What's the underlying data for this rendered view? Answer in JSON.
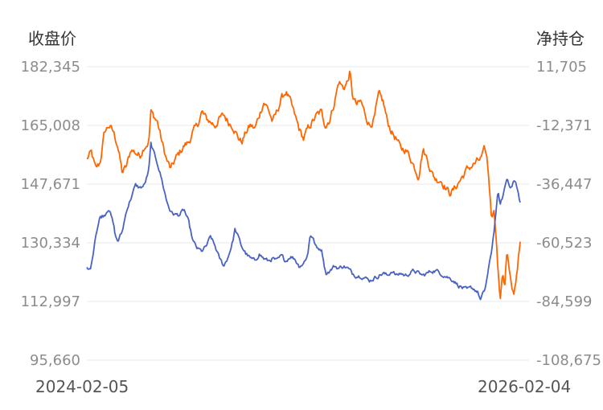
{
  "chart_data": {
    "type": "line",
    "left_axis_title": "收盘价",
    "right_axis_title": "净持仓",
    "left_ticks": [
      "182,345",
      "165,008",
      "147,671",
      "130,334",
      "112,997",
      "95,660"
    ],
    "right_ticks": [
      "11,705",
      "-12,371",
      "-36,447",
      "-60,523",
      "-84,599",
      "-108,675"
    ],
    "ylim_left": [
      95660,
      182345
    ],
    "ylim_right": [
      -108675,
      11705
    ],
    "x_start": "2024-02-05",
    "x_end": "2026-02-04",
    "grid": true,
    "series": [
      {
        "axis": "left",
        "color": "#ff6600",
        "anchors": [
          [
            0,
            155000
          ],
          [
            0.01,
            157000
          ],
          [
            0.02,
            152000
          ],
          [
            0.03,
            154000
          ],
          [
            0.04,
            163000
          ],
          [
            0.05,
            165000
          ],
          [
            0.06,
            163000
          ],
          [
            0.07,
            159000
          ],
          [
            0.08,
            151000
          ],
          [
            0.09,
            153000
          ],
          [
            0.1,
            158000
          ],
          [
            0.11,
            157000
          ],
          [
            0.12,
            156000
          ],
          [
            0.13,
            159000
          ],
          [
            0.14,
            160000
          ],
          [
            0.145,
            169000
          ],
          [
            0.15,
            168000
          ],
          [
            0.16,
            166000
          ],
          [
            0.17,
            160000
          ],
          [
            0.18,
            155000
          ],
          [
            0.19,
            152000
          ],
          [
            0.2,
            155000
          ],
          [
            0.21,
            157000
          ],
          [
            0.22,
            159000
          ],
          [
            0.23,
            160000
          ],
          [
            0.24,
            163000
          ],
          [
            0.25,
            165000
          ],
          [
            0.26,
            169000
          ],
          [
            0.27,
            167000
          ],
          [
            0.28,
            166000
          ],
          [
            0.29,
            165000
          ],
          [
            0.3,
            167000
          ],
          [
            0.31,
            168000
          ],
          [
            0.32,
            166000
          ],
          [
            0.33,
            165000
          ],
          [
            0.34,
            162000
          ],
          [
            0.35,
            160000
          ],
          [
            0.36,
            163000
          ],
          [
            0.37,
            165000
          ],
          [
            0.38,
            164000
          ],
          [
            0.39,
            168000
          ],
          [
            0.4,
            172000
          ],
          [
            0.41,
            170000
          ],
          [
            0.42,
            166000
          ],
          [
            0.43,
            169000
          ],
          [
            0.44,
            173000
          ],
          [
            0.45,
            175000
          ],
          [
            0.46,
            172000
          ],
          [
            0.47,
            168000
          ],
          [
            0.48,
            164000
          ],
          [
            0.49,
            161000
          ],
          [
            0.5,
            164000
          ],
          [
            0.51,
            166000
          ],
          [
            0.52,
            168000
          ],
          [
            0.53,
            169000
          ],
          [
            0.54,
            165000
          ],
          [
            0.55,
            167000
          ],
          [
            0.56,
            172000
          ],
          [
            0.57,
            178000
          ],
          [
            0.58,
            176000
          ],
          [
            0.59,
            178000
          ],
          [
            0.595,
            181000
          ],
          [
            0.6,
            174000
          ],
          [
            0.61,
            171000
          ],
          [
            0.62,
            172000
          ],
          [
            0.63,
            168000
          ],
          [
            0.64,
            165000
          ],
          [
            0.65,
            167000
          ],
          [
            0.66,
            174000
          ],
          [
            0.67,
            172000
          ],
          [
            0.68,
            166000
          ],
          [
            0.69,
            163000
          ],
          [
            0.7,
            161000
          ],
          [
            0.71,
            158000
          ],
          [
            0.72,
            158000
          ],
          [
            0.73,
            156000
          ],
          [
            0.74,
            153000
          ],
          [
            0.75,
            150000
          ],
          [
            0.76,
            158000
          ],
          [
            0.77,
            155000
          ],
          [
            0.78,
            151000
          ],
          [
            0.79,
            149000
          ],
          [
            0.8,
            149000
          ],
          [
            0.81,
            147000
          ],
          [
            0.82,
            145000
          ],
          [
            0.83,
            146000
          ],
          [
            0.84,
            148000
          ],
          [
            0.85,
            150000
          ],
          [
            0.86,
            152000
          ],
          [
            0.87,
            153000
          ],
          [
            0.88,
            154000
          ],
          [
            0.89,
            155000
          ],
          [
            0.895,
            156000
          ],
          [
            0.9,
            158000
          ],
          [
            0.905,
            155000
          ],
          [
            0.91,
            148000
          ],
          [
            0.915,
            138000
          ],
          [
            0.92,
            141000
          ],
          [
            0.925,
            134000
          ],
          [
            0.93,
            122000
          ],
          [
            0.935,
            113000
          ],
          [
            0.94,
            122000
          ],
          [
            0.945,
            118000
          ],
          [
            0.95,
            128000
          ],
          [
            0.955,
            122000
          ],
          [
            0.96,
            117000
          ],
          [
            0.965,
            115000
          ],
          [
            0.97,
            119000
          ],
          [
            0.975,
            125000
          ],
          [
            0.98,
            130000
          ]
        ],
        "amp": 1200
      },
      {
        "axis": "right",
        "color": "#4a63c2",
        "anchors": [
          [
            0,
            -71000
          ],
          [
            0.005,
            -72000
          ],
          [
            0.01,
            -70000
          ],
          [
            0.02,
            -57000
          ],
          [
            0.03,
            -50000
          ],
          [
            0.04,
            -49000
          ],
          [
            0.05,
            -46000
          ],
          [
            0.06,
            -53000
          ],
          [
            0.065,
            -58000
          ],
          [
            0.07,
            -60000
          ],
          [
            0.08,
            -56000
          ],
          [
            0.09,
            -47000
          ],
          [
            0.1,
            -42000
          ],
          [
            0.11,
            -37000
          ],
          [
            0.12,
            -38000
          ],
          [
            0.13,
            -37000
          ],
          [
            0.135,
            -34000
          ],
          [
            0.14,
            -31000
          ],
          [
            0.145,
            -20000
          ],
          [
            0.15,
            -23000
          ],
          [
            0.16,
            -28000
          ],
          [
            0.17,
            -35000
          ],
          [
            0.18,
            -43000
          ],
          [
            0.19,
            -48000
          ],
          [
            0.2,
            -49000
          ],
          [
            0.21,
            -49000
          ],
          [
            0.22,
            -47000
          ],
          [
            0.23,
            -52000
          ],
          [
            0.24,
            -60000
          ],
          [
            0.25,
            -63000
          ],
          [
            0.26,
            -64000
          ],
          [
            0.27,
            -62000
          ],
          [
            0.28,
            -58000
          ],
          [
            0.29,
            -62000
          ],
          [
            0.3,
            -67000
          ],
          [
            0.31,
            -70000
          ],
          [
            0.32,
            -66000
          ],
          [
            0.33,
            -60000
          ],
          [
            0.335,
            -55000
          ],
          [
            0.34,
            -57000
          ],
          [
            0.35,
            -62000
          ],
          [
            0.36,
            -65000
          ],
          [
            0.37,
            -67000
          ],
          [
            0.38,
            -68000
          ],
          [
            0.39,
            -65000
          ],
          [
            0.4,
            -67000
          ],
          [
            0.41,
            -68000
          ],
          [
            0.42,
            -67000
          ],
          [
            0.43,
            -68000
          ],
          [
            0.44,
            -66000
          ],
          [
            0.45,
            -68000
          ],
          [
            0.46,
            -66000
          ],
          [
            0.47,
            -67000
          ],
          [
            0.48,
            -70000
          ],
          [
            0.49,
            -69000
          ],
          [
            0.5,
            -65000
          ],
          [
            0.505,
            -57000
          ],
          [
            0.51,
            -58000
          ],
          [
            0.52,
            -63000
          ],
          [
            0.53,
            -63000
          ],
          [
            0.535,
            -67000
          ],
          [
            0.54,
            -73000
          ],
          [
            0.55,
            -72000
          ],
          [
            0.56,
            -70000
          ],
          [
            0.57,
            -71000
          ],
          [
            0.58,
            -70000
          ],
          [
            0.59,
            -71000
          ],
          [
            0.6,
            -73000
          ],
          [
            0.61,
            -74000
          ],
          [
            0.62,
            -74000
          ],
          [
            0.63,
            -75000
          ],
          [
            0.64,
            -76000
          ],
          [
            0.65,
            -75000
          ],
          [
            0.66,
            -74000
          ],
          [
            0.67,
            -73000
          ],
          [
            0.68,
            -74000
          ],
          [
            0.69,
            -72000
          ],
          [
            0.7,
            -74000
          ],
          [
            0.71,
            -73000
          ],
          [
            0.72,
            -74000
          ],
          [
            0.73,
            -73000
          ],
          [
            0.74,
            -72000
          ],
          [
            0.75,
            -73000
          ],
          [
            0.76,
            -74000
          ],
          [
            0.77,
            -73000
          ],
          [
            0.78,
            -72000
          ],
          [
            0.79,
            -72000
          ],
          [
            0.8,
            -73000
          ],
          [
            0.81,
            -74000
          ],
          [
            0.82,
            -75000
          ],
          [
            0.83,
            -76000
          ],
          [
            0.84,
            -78000
          ],
          [
            0.85,
            -79000
          ],
          [
            0.86,
            -80000
          ],
          [
            0.87,
            -79000
          ],
          [
            0.88,
            -80000
          ],
          [
            0.885,
            -81000
          ],
          [
            0.89,
            -84000
          ],
          [
            0.895,
            -82000
          ],
          [
            0.9,
            -80000
          ],
          [
            0.905,
            -75000
          ],
          [
            0.91,
            -70000
          ],
          [
            0.915,
            -64000
          ],
          [
            0.92,
            -57000
          ],
          [
            0.925,
            -48000
          ],
          [
            0.93,
            -40000
          ],
          [
            0.935,
            -45000
          ],
          [
            0.94,
            -42000
          ],
          [
            0.945,
            -38000
          ],
          [
            0.95,
            -34000
          ],
          [
            0.955,
            -36000
          ],
          [
            0.96,
            -38000
          ],
          [
            0.965,
            -35000
          ],
          [
            0.97,
            -36000
          ],
          [
            0.975,
            -40000
          ],
          [
            0.98,
            -44000
          ]
        ],
        "amp": 900
      }
    ]
  }
}
